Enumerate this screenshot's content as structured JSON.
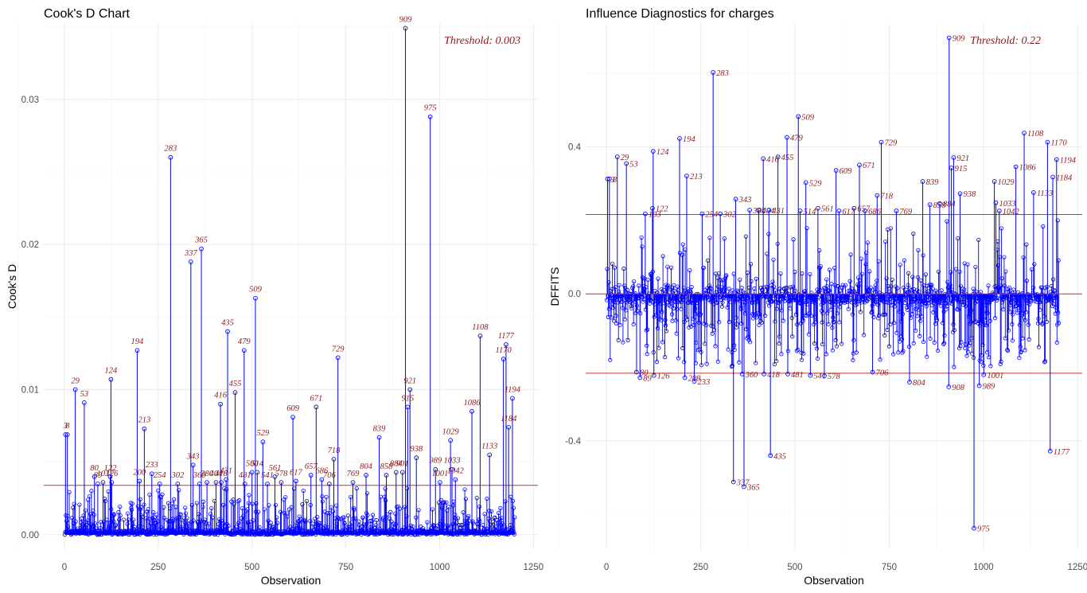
{
  "chart_data": [
    {
      "type": "scatter",
      "title": "Cook's D Chart",
      "xlabel": "Observation",
      "ylabel": "Cook's D",
      "xlim": [
        -55,
        1262
      ],
      "ylim": [
        -0.001,
        0.0352
      ],
      "xticks": [
        0,
        250,
        500,
        750,
        1000,
        1250
      ],
      "yticks": [
        0.0,
        0.01,
        0.02,
        0.03
      ],
      "ytick_labels": [
        "0.00",
        "0.01",
        "0.02",
        "0.03"
      ],
      "threshold": 0.0034,
      "threshold_label": "Threshold: 0.003",
      "grid": true,
      "labeled_points": [
        {
          "x": 3,
          "y": 0.0069,
          "label": "3"
        },
        {
          "x": 8,
          "y": 0.0069,
          "label": "8"
        },
        {
          "x": 29,
          "y": 0.01,
          "label": "29"
        },
        {
          "x": 53,
          "y": 0.0091,
          "label": "53"
        },
        {
          "x": 80,
          "y": 0.004,
          "label": "80"
        },
        {
          "x": 89,
          "y": 0.0035,
          "label": "89"
        },
        {
          "x": 103,
          "y": 0.0036,
          "label": "103"
        },
        {
          "x": 122,
          "y": 0.004,
          "label": "122"
        },
        {
          "x": 124,
          "y": 0.0107,
          "label": "124"
        },
        {
          "x": 126,
          "y": 0.0036,
          "label": "126"
        },
        {
          "x": 194,
          "y": 0.0127,
          "label": "194"
        },
        {
          "x": 200,
          "y": 0.0037,
          "label": "200"
        },
        {
          "x": 213,
          "y": 0.0073,
          "label": "213"
        },
        {
          "x": 233,
          "y": 0.0042,
          "label": "233"
        },
        {
          "x": 254,
          "y": 0.0035,
          "label": "254"
        },
        {
          "x": 283,
          "y": 0.026,
          "label": "283"
        },
        {
          "x": 302,
          "y": 0.0035,
          "label": "302"
        },
        {
          "x": 337,
          "y": 0.0188,
          "label": "337"
        },
        {
          "x": 343,
          "y": 0.0048,
          "label": "343"
        },
        {
          "x": 360,
          "y": 0.0035,
          "label": "360"
        },
        {
          "x": 365,
          "y": 0.0197,
          "label": "365"
        },
        {
          "x": 380,
          "y": 0.0036,
          "label": "380"
        },
        {
          "x": 404,
          "y": 0.0036,
          "label": "404"
        },
        {
          "x": 416,
          "y": 0.009,
          "label": "416"
        },
        {
          "x": 418,
          "y": 0.0036,
          "label": "418"
        },
        {
          "x": 431,
          "y": 0.0038,
          "label": "431"
        },
        {
          "x": 435,
          "y": 0.014,
          "label": "435"
        },
        {
          "x": 455,
          "y": 0.0098,
          "label": "455"
        },
        {
          "x": 479,
          "y": 0.0127,
          "label": "479"
        },
        {
          "x": 481,
          "y": 0.0035,
          "label": "481"
        },
        {
          "x": 500,
          "y": 0.0043,
          "label": "500"
        },
        {
          "x": 509,
          "y": 0.0163,
          "label": "509"
        },
        {
          "x": 514,
          "y": 0.0043,
          "label": "514"
        },
        {
          "x": 529,
          "y": 0.0064,
          "label": "529"
        },
        {
          "x": 541,
          "y": 0.0035,
          "label": "541"
        },
        {
          "x": 561,
          "y": 0.004,
          "label": "561"
        },
        {
          "x": 578,
          "y": 0.0036,
          "label": "578"
        },
        {
          "x": 609,
          "y": 0.0081,
          "label": "609"
        },
        {
          "x": 617,
          "y": 0.0037,
          "label": "617"
        },
        {
          "x": 657,
          "y": 0.0041,
          "label": "657"
        },
        {
          "x": 671,
          "y": 0.0088,
          "label": "671"
        },
        {
          "x": 686,
          "y": 0.0038,
          "label": "686"
        },
        {
          "x": 706,
          "y": 0.0035,
          "label": "706"
        },
        {
          "x": 718,
          "y": 0.0052,
          "label": "718"
        },
        {
          "x": 729,
          "y": 0.0122,
          "label": "729"
        },
        {
          "x": 769,
          "y": 0.0036,
          "label": "769"
        },
        {
          "x": 804,
          "y": 0.0041,
          "label": "804"
        },
        {
          "x": 839,
          "y": 0.0067,
          "label": "839"
        },
        {
          "x": 858,
          "y": 0.0041,
          "label": "858"
        },
        {
          "x": 884,
          "y": 0.0043,
          "label": "884"
        },
        {
          "x": 901,
          "y": 0.0043,
          "label": "901"
        },
        {
          "x": 909,
          "y": 0.0349,
          "label": "909"
        },
        {
          "x": 915,
          "y": 0.0088,
          "label": "915"
        },
        {
          "x": 921,
          "y": 0.01,
          "label": "921"
        },
        {
          "x": 938,
          "y": 0.0053,
          "label": "938"
        },
        {
          "x": 975,
          "y": 0.0288,
          "label": "975"
        },
        {
          "x": 989,
          "y": 0.0045,
          "label": "989"
        },
        {
          "x": 1001,
          "y": 0.0036,
          "label": "1001"
        },
        {
          "x": 1029,
          "y": 0.0065,
          "label": "1029"
        },
        {
          "x": 1033,
          "y": 0.0045,
          "label": "1033"
        },
        {
          "x": 1042,
          "y": 0.0038,
          "label": "1042"
        },
        {
          "x": 1086,
          "y": 0.0085,
          "label": "1086"
        },
        {
          "x": 1108,
          "y": 0.0137,
          "label": "1108"
        },
        {
          "x": 1133,
          "y": 0.0055,
          "label": "1133"
        },
        {
          "x": 1170,
          "y": 0.0121,
          "label": "1170"
        },
        {
          "x": 1177,
          "y": 0.0131,
          "label": "1177"
        },
        {
          "x": 1184,
          "y": 0.0074,
          "label": "1184"
        },
        {
          "x": 1194,
          "y": 0.0094,
          "label": "1194"
        }
      ]
    },
    {
      "type": "scatter",
      "title": "Influence Diagnostics for charges",
      "xlabel": "Observation",
      "ylabel": "DFFITS",
      "xlim": [
        -55,
        1262
      ],
      "ylim": [
        -0.695,
        0.735
      ],
      "xticks": [
        0,
        250,
        500,
        750,
        1000,
        1250
      ],
      "yticks": [
        -0.4,
        0.0,
        0.4
      ],
      "ytick_labels": [
        "-0.4",
        "0.0",
        "0.4"
      ],
      "threshold": 0.216,
      "threshold_label": "Threshold: 0.22",
      "grid": true,
      "labeled_points": [
        {
          "x": 3,
          "y": 0.313,
          "label": "3"
        },
        {
          "x": 8,
          "y": 0.313,
          "label": "8"
        },
        {
          "x": 29,
          "y": 0.373,
          "label": "29"
        },
        {
          "x": 53,
          "y": 0.355,
          "label": "53"
        },
        {
          "x": 80,
          "y": -0.213,
          "label": "80"
        },
        {
          "x": 89,
          "y": -0.228,
          "label": "89"
        },
        {
          "x": 103,
          "y": 0.218,
          "label": "103"
        },
        {
          "x": 122,
          "y": 0.233,
          "label": "122"
        },
        {
          "x": 124,
          "y": 0.388,
          "label": "124"
        },
        {
          "x": 126,
          "y": -0.222,
          "label": "126"
        },
        {
          "x": 194,
          "y": 0.423,
          "label": "194"
        },
        {
          "x": 208,
          "y": -0.228,
          "label": "208"
        },
        {
          "x": 213,
          "y": 0.321,
          "label": "213"
        },
        {
          "x": 233,
          "y": -0.238,
          "label": "233"
        },
        {
          "x": 254,
          "y": 0.218,
          "label": "254"
        },
        {
          "x": 283,
          "y": 0.603,
          "label": "283"
        },
        {
          "x": 302,
          "y": 0.218,
          "label": "302"
        },
        {
          "x": 337,
          "y": -0.512,
          "label": "337"
        },
        {
          "x": 343,
          "y": 0.258,
          "label": "343"
        },
        {
          "x": 360,
          "y": -0.218,
          "label": "360"
        },
        {
          "x": 365,
          "y": -0.525,
          "label": "365"
        },
        {
          "x": 380,
          "y": 0.228,
          "label": "380"
        },
        {
          "x": 404,
          "y": 0.228,
          "label": "404"
        },
        {
          "x": 416,
          "y": 0.368,
          "label": "416"
        },
        {
          "x": 418,
          "y": -0.218,
          "label": "418"
        },
        {
          "x": 431,
          "y": 0.228,
          "label": "431"
        },
        {
          "x": 435,
          "y": -0.44,
          "label": "435"
        },
        {
          "x": 455,
          "y": 0.373,
          "label": "455"
        },
        {
          "x": 479,
          "y": 0.426,
          "label": "479"
        },
        {
          "x": 481,
          "y": -0.218,
          "label": "481"
        },
        {
          "x": 509,
          "y": 0.483,
          "label": "509"
        },
        {
          "x": 514,
          "y": 0.226,
          "label": "514"
        },
        {
          "x": 529,
          "y": 0.303,
          "label": "529"
        },
        {
          "x": 541,
          "y": -0.222,
          "label": "541"
        },
        {
          "x": 561,
          "y": 0.233,
          "label": "561"
        },
        {
          "x": 578,
          "y": -0.223,
          "label": "578"
        },
        {
          "x": 609,
          "y": 0.336,
          "label": "609"
        },
        {
          "x": 617,
          "y": 0.226,
          "label": "617"
        },
        {
          "x": 657,
          "y": 0.233,
          "label": "657"
        },
        {
          "x": 671,
          "y": 0.351,
          "label": "671"
        },
        {
          "x": 686,
          "y": 0.226,
          "label": "686"
        },
        {
          "x": 706,
          "y": -0.213,
          "label": "706"
        },
        {
          "x": 718,
          "y": 0.268,
          "label": "718"
        },
        {
          "x": 729,
          "y": 0.413,
          "label": "729"
        },
        {
          "x": 769,
          "y": 0.226,
          "label": "769"
        },
        {
          "x": 804,
          "y": -0.24,
          "label": "804"
        },
        {
          "x": 839,
          "y": 0.306,
          "label": "839"
        },
        {
          "x": 858,
          "y": 0.243,
          "label": "858"
        },
        {
          "x": 884,
          "y": 0.246,
          "label": "884"
        },
        {
          "x": 908,
          "y": -0.253,
          "label": "908"
        },
        {
          "x": 909,
          "y": 0.697,
          "label": "909"
        },
        {
          "x": 915,
          "y": 0.343,
          "label": "915"
        },
        {
          "x": 921,
          "y": 0.371,
          "label": "921"
        },
        {
          "x": 938,
          "y": 0.273,
          "label": "938"
        },
        {
          "x": 975,
          "y": -0.638,
          "label": "975"
        },
        {
          "x": 989,
          "y": -0.25,
          "label": "989"
        },
        {
          "x": 1001,
          "y": -0.22,
          "label": "1001"
        },
        {
          "x": 1029,
          "y": 0.306,
          "label": "1029"
        },
        {
          "x": 1033,
          "y": 0.248,
          "label": "1033"
        },
        {
          "x": 1042,
          "y": 0.226,
          "label": "1042"
        },
        {
          "x": 1086,
          "y": 0.346,
          "label": "1086"
        },
        {
          "x": 1108,
          "y": 0.438,
          "label": "1108"
        },
        {
          "x": 1133,
          "y": 0.276,
          "label": "1133"
        },
        {
          "x": 1170,
          "y": 0.413,
          "label": "1170"
        },
        {
          "x": 1177,
          "y": -0.428,
          "label": "1177"
        },
        {
          "x": 1184,
          "y": 0.318,
          "label": "1184"
        },
        {
          "x": 1194,
          "y": 0.366,
          "label": "1194"
        }
      ]
    }
  ],
  "colors": {
    "points": "#0000ff",
    "threshold": "#c0392b",
    "labels": "#8b1a1a",
    "grid": "#ebebeb"
  }
}
